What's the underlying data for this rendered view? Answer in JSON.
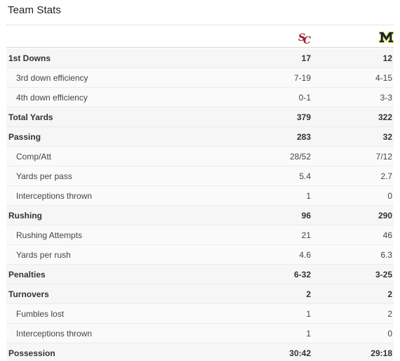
{
  "title": "Team Stats",
  "teams": {
    "team1": {
      "logo_text": "SC",
      "color": "#9d2235",
      "icon": "usc-logo-icon"
    },
    "team2": {
      "logo_text": "M",
      "color": "#00274c",
      "accent": "#ffcb05",
      "icon": "michigan-logo-icon"
    }
  },
  "rows": [
    {
      "label": "1st Downs",
      "team1": "17",
      "team2": "12",
      "main": true
    },
    {
      "label": "3rd down efficiency",
      "team1": "7-19",
      "team2": "4-15",
      "main": false
    },
    {
      "label": "4th down efficiency",
      "team1": "0-1",
      "team2": "3-3",
      "main": false
    },
    {
      "label": "Total Yards",
      "team1": "379",
      "team2": "322",
      "main": true
    },
    {
      "label": "Passing",
      "team1": "283",
      "team2": "32",
      "main": true
    },
    {
      "label": "Comp/Att",
      "team1": "28/52",
      "team2": "7/12",
      "main": false
    },
    {
      "label": "Yards per pass",
      "team1": "5.4",
      "team2": "2.7",
      "main": false
    },
    {
      "label": "Interceptions thrown",
      "team1": "1",
      "team2": "0",
      "main": false
    },
    {
      "label": "Rushing",
      "team1": "96",
      "team2": "290",
      "main": true
    },
    {
      "label": "Rushing Attempts",
      "team1": "21",
      "team2": "46",
      "main": false
    },
    {
      "label": "Yards per rush",
      "team1": "4.6",
      "team2": "6.3",
      "main": false
    },
    {
      "label": "Penalties",
      "team1": "6-32",
      "team2": "3-25",
      "main": true
    },
    {
      "label": "Turnovers",
      "team1": "2",
      "team2": "2",
      "main": true
    },
    {
      "label": "Fumbles lost",
      "team1": "1",
      "team2": "2",
      "main": false
    },
    {
      "label": "Interceptions thrown",
      "team1": "1",
      "team2": "0",
      "main": false
    },
    {
      "label": "Possession",
      "team1": "30:42",
      "team2": "29:18",
      "main": true
    }
  ]
}
